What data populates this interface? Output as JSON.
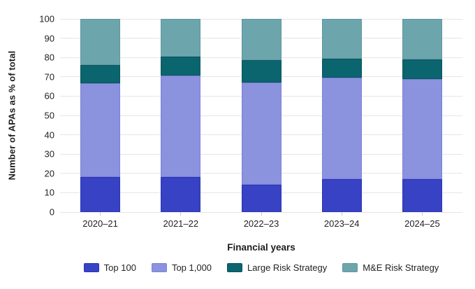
{
  "chart_data": {
    "type": "bar",
    "stacked": true,
    "title": "",
    "xlabel": "Financial years",
    "ylabel": "Number of APAs as % of total",
    "ylim": [
      0,
      100
    ],
    "ytick_step": 10,
    "grid": true,
    "legend_position": "bottom",
    "categories": [
      "2020–21",
      "2021–22",
      "2022–23",
      "2023–24",
      "2024–25"
    ],
    "series": [
      {
        "name": "Top 100",
        "color": "#3742c5",
        "border": "#2a34b2",
        "values": [
          18,
          18,
          14,
          17,
          17
        ]
      },
      {
        "name": "Top 1,000",
        "color": "#8b92de",
        "border": "#7a82d6",
        "values": [
          48.5,
          52.5,
          53,
          52.5,
          52
        ]
      },
      {
        "name": "Large Risk Strategy",
        "color": "#0b656e",
        "border": "#07545d",
        "values": [
          9.5,
          10,
          11.5,
          10,
          10
        ]
      },
      {
        "name": "M&E Risk Strategy",
        "color": "#6da5ac",
        "border": "#5d969e",
        "values": [
          24,
          19.5,
          21.5,
          20.5,
          21
        ]
      }
    ],
    "colors": {
      "gridline": "#e5e5e7",
      "tick": "#c9c9cc",
      "text": "#222226"
    }
  }
}
